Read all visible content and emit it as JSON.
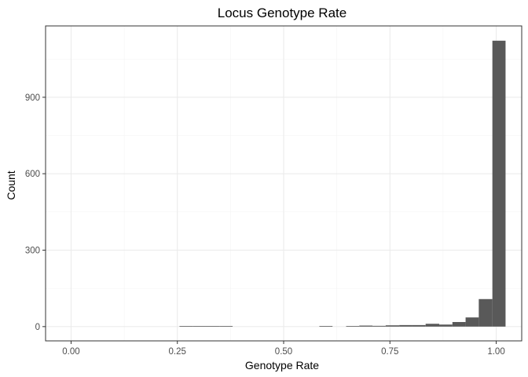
{
  "chart_data": {
    "type": "bar",
    "title": "Locus Genotype Rate",
    "xlabel": "Genotype Rate",
    "ylabel": "Count",
    "xlim": [
      -0.06,
      1.06
    ],
    "ylim": [
      -56,
      1180
    ],
    "x_ticks": [
      {
        "value": 0.0,
        "label": "0.00"
      },
      {
        "value": 0.25,
        "label": "0.25"
      },
      {
        "value": 0.5,
        "label": "0.50"
      },
      {
        "value": 0.75,
        "label": "0.75"
      },
      {
        "value": 1.0,
        "label": "1.00"
      }
    ],
    "y_ticks": [
      {
        "value": 0,
        "label": "0"
      },
      {
        "value": 300,
        "label": "300"
      },
      {
        "value": 600,
        "label": "600"
      },
      {
        "value": 900,
        "label": "900"
      }
    ],
    "grid": true,
    "bin_width": 0.0313,
    "bins": [
      {
        "x0": 0.255,
        "x1": 0.286,
        "count": 1
      },
      {
        "x0": 0.286,
        "x1": 0.317,
        "count": 1
      },
      {
        "x0": 0.317,
        "x1": 0.349,
        "count": 1
      },
      {
        "x0": 0.349,
        "x1": 0.38,
        "count": 1
      },
      {
        "x0": 0.584,
        "x1": 0.615,
        "count": 2
      },
      {
        "x0": 0.647,
        "x1": 0.678,
        "count": 2
      },
      {
        "x0": 0.678,
        "x1": 0.709,
        "count": 4
      },
      {
        "x0": 0.709,
        "x1": 0.74,
        "count": 3
      },
      {
        "x0": 0.74,
        "x1": 0.772,
        "count": 5
      },
      {
        "x0": 0.772,
        "x1": 0.803,
        "count": 6
      },
      {
        "x0": 0.803,
        "x1": 0.834,
        "count": 6
      },
      {
        "x0": 0.834,
        "x1": 0.866,
        "count": 11
      },
      {
        "x0": 0.866,
        "x1": 0.897,
        "count": 8
      },
      {
        "x0": 0.897,
        "x1": 0.928,
        "count": 18
      },
      {
        "x0": 0.928,
        "x1": 0.959,
        "count": 36
      },
      {
        "x0": 0.959,
        "x1": 0.991,
        "count": 108
      },
      {
        "x0": 0.991,
        "x1": 1.022,
        "count": 1122
      }
    ],
    "colors": {
      "bar": "#595959",
      "grid_major": "#ebebeb",
      "grid_minor": "#f4f4f4",
      "panel_border": "#333333",
      "tick": "#333333"
    }
  }
}
